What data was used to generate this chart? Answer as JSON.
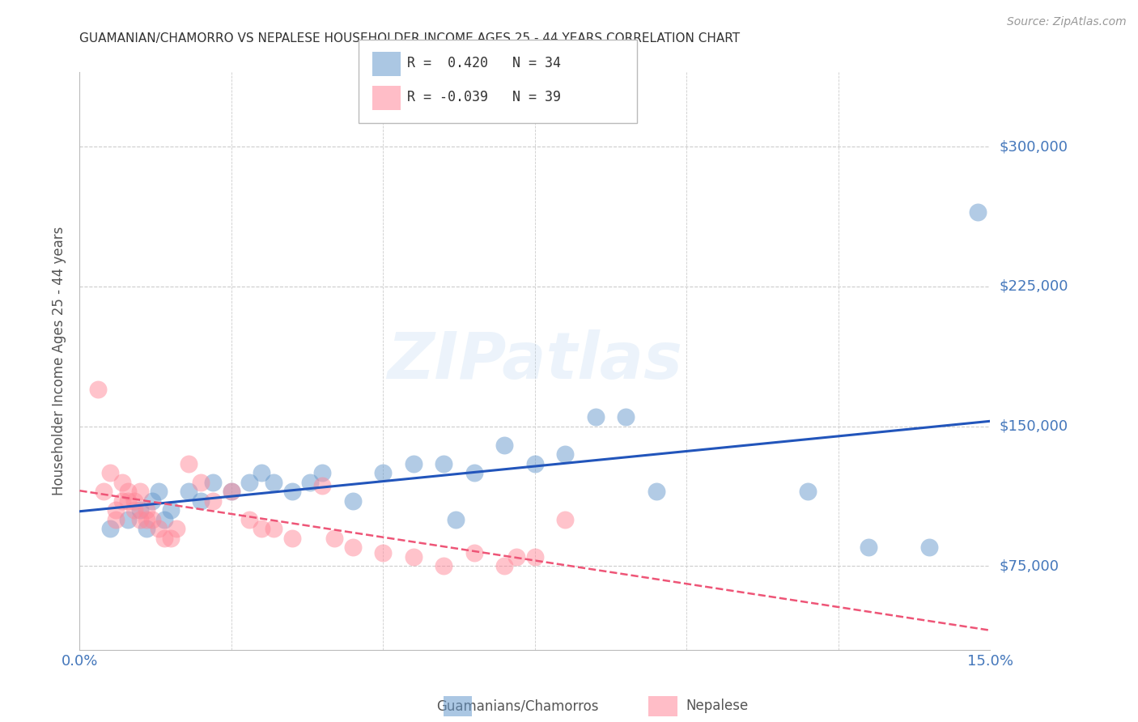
{
  "title": "GUAMANIAN/CHAMORRO VS NEPALESE HOUSEHOLDER INCOME AGES 25 - 44 YEARS CORRELATION CHART",
  "source": "Source: ZipAtlas.com",
  "ylabel": "Householder Income Ages 25 - 44 years",
  "ytick_values": [
    75000,
    150000,
    225000,
    300000
  ],
  "ytick_labels": [
    "$75,000",
    "$150,000",
    "$225,000",
    "$300,000"
  ],
  "xlim": [
    0.0,
    0.15
  ],
  "ylim": [
    30000,
    340000
  ],
  "legend_line1": "R =  0.420   N = 34",
  "legend_line2": "R = -0.039   N = 39",
  "legend_label1": "Guamanians/Chamorros",
  "legend_label2": "Nepalese",
  "watermark": "ZIPatlas",
  "blue_color": "#6699CC",
  "pink_color": "#FF8899",
  "title_color": "#333333",
  "axis_label_color": "#555555",
  "tick_color": "#4477BB",
  "grid_color": "#CCCCCC",
  "background_color": "#FFFFFF",
  "blue_scatter_x": [
    0.005,
    0.008,
    0.01,
    0.011,
    0.012,
    0.013,
    0.014,
    0.015,
    0.018,
    0.02,
    0.022,
    0.025,
    0.028,
    0.03,
    0.032,
    0.035,
    0.038,
    0.04,
    0.045,
    0.05,
    0.055,
    0.06,
    0.062,
    0.065,
    0.07,
    0.075,
    0.08,
    0.085,
    0.09,
    0.095,
    0.12,
    0.13,
    0.14,
    0.148
  ],
  "blue_scatter_y": [
    95000,
    100000,
    105000,
    95000,
    110000,
    115000,
    100000,
    105000,
    115000,
    110000,
    120000,
    115000,
    120000,
    125000,
    120000,
    115000,
    120000,
    125000,
    110000,
    125000,
    130000,
    130000,
    100000,
    125000,
    140000,
    130000,
    135000,
    155000,
    155000,
    115000,
    115000,
    85000,
    85000,
    265000
  ],
  "pink_scatter_x": [
    0.003,
    0.004,
    0.005,
    0.006,
    0.006,
    0.007,
    0.007,
    0.008,
    0.008,
    0.009,
    0.009,
    0.01,
    0.01,
    0.011,
    0.011,
    0.012,
    0.013,
    0.014,
    0.015,
    0.016,
    0.018,
    0.02,
    0.022,
    0.025,
    0.028,
    0.03,
    0.032,
    0.035,
    0.04,
    0.042,
    0.045,
    0.05,
    0.055,
    0.06,
    0.065,
    0.07,
    0.072,
    0.075,
    0.08
  ],
  "pink_scatter_y": [
    170000,
    115000,
    125000,
    100000,
    105000,
    120000,
    110000,
    115000,
    110000,
    110000,
    105000,
    100000,
    115000,
    105000,
    100000,
    100000,
    95000,
    90000,
    90000,
    95000,
    130000,
    120000,
    110000,
    115000,
    100000,
    95000,
    95000,
    90000,
    118000,
    90000,
    85000,
    82000,
    80000,
    75000,
    82000,
    75000,
    80000,
    80000,
    100000
  ]
}
